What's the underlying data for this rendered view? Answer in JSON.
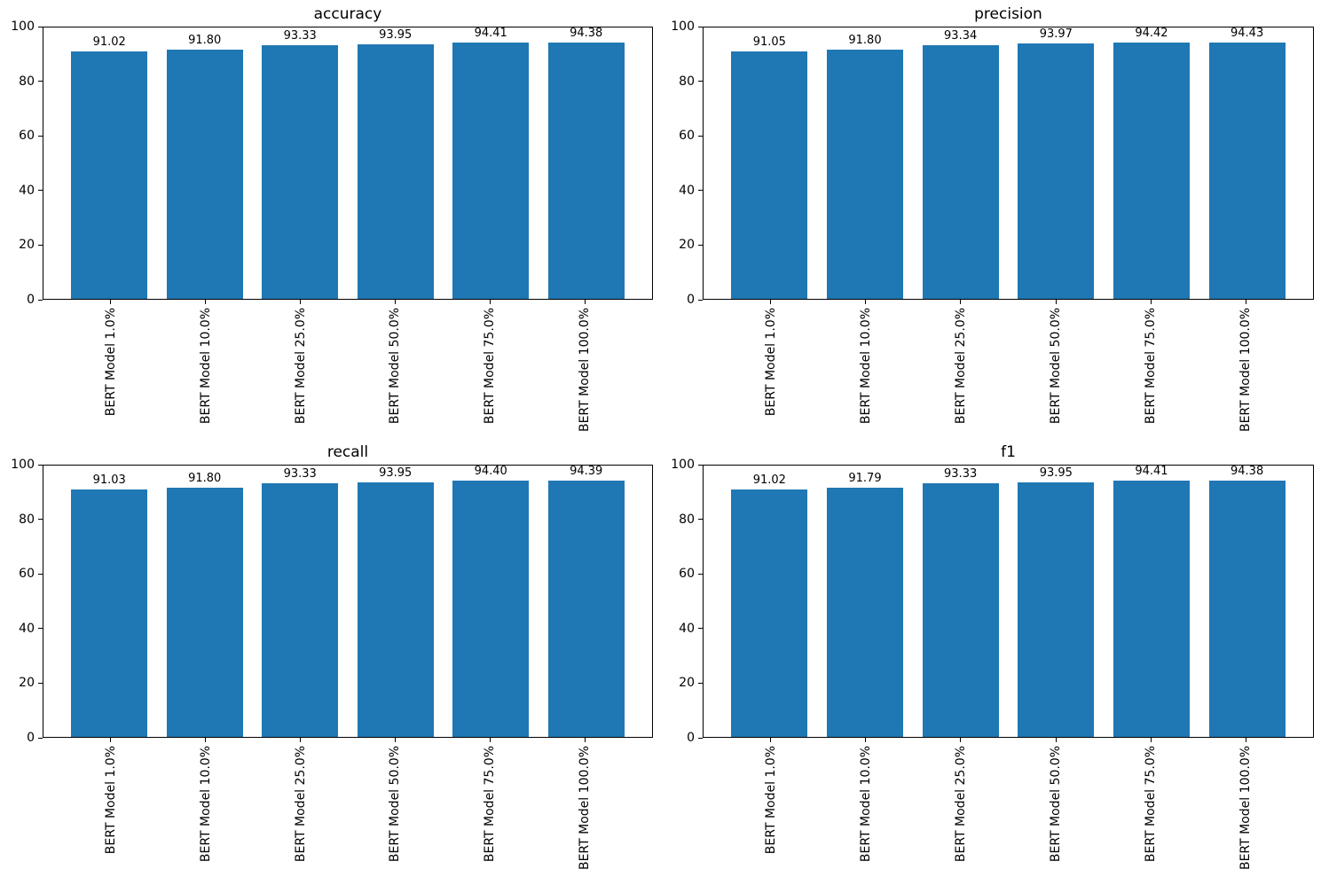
{
  "figure": {
    "background_color": "#ffffff",
    "axis_color": "#000000",
    "text_color": "#000000",
    "bar_color": "#1f77b4"
  },
  "chart_data": [
    {
      "type": "bar",
      "title": "accuracy",
      "categories": [
        "BERT Model 1.0%",
        "BERT Model 10.0%",
        "BERT Model 25.0%",
        "BERT Model 50.0%",
        "BERT Model 75.0%",
        "BERT Model 100.0%"
      ],
      "values": [
        91.02,
        91.8,
        93.33,
        93.95,
        94.41,
        94.38
      ],
      "value_labels": [
        "91.02",
        "91.80",
        "93.33",
        "93.95",
        "94.41",
        "94.38"
      ],
      "xlabel": "",
      "ylabel": "",
      "ylim": [
        0,
        100
      ],
      "yticks": [
        0,
        20,
        40,
        60,
        80,
        100
      ],
      "xtick_rotation": 90,
      "grid": false,
      "legend": false,
      "bar_color": "#1f77b4"
    },
    {
      "type": "bar",
      "title": "precision",
      "categories": [
        "BERT Model 1.0%",
        "BERT Model 10.0%",
        "BERT Model 25.0%",
        "BERT Model 50.0%",
        "BERT Model 75.0%",
        "BERT Model 100.0%"
      ],
      "values": [
        91.05,
        91.8,
        93.34,
        93.97,
        94.42,
        94.43
      ],
      "value_labels": [
        "91.05",
        "91.80",
        "93.34",
        "93.97",
        "94.42",
        "94.43"
      ],
      "xlabel": "",
      "ylabel": "",
      "ylim": [
        0,
        100
      ],
      "yticks": [
        0,
        20,
        40,
        60,
        80,
        100
      ],
      "xtick_rotation": 90,
      "grid": false,
      "legend": false,
      "bar_color": "#1f77b4"
    },
    {
      "type": "bar",
      "title": "recall",
      "categories": [
        "BERT Model 1.0%",
        "BERT Model 10.0%",
        "BERT Model 25.0%",
        "BERT Model 50.0%",
        "BERT Model 75.0%",
        "BERT Model 100.0%"
      ],
      "values": [
        91.03,
        91.8,
        93.33,
        93.95,
        94.4,
        94.39
      ],
      "value_labels": [
        "91.03",
        "91.80",
        "93.33",
        "93.95",
        "94.40",
        "94.39"
      ],
      "xlabel": "",
      "ylabel": "",
      "ylim": [
        0,
        100
      ],
      "yticks": [
        0,
        20,
        40,
        60,
        80,
        100
      ],
      "xtick_rotation": 90,
      "grid": false,
      "legend": false,
      "bar_color": "#1f77b4"
    },
    {
      "type": "bar",
      "title": "f1",
      "categories": [
        "BERT Model 1.0%",
        "BERT Model 10.0%",
        "BERT Model 25.0%",
        "BERT Model 50.0%",
        "BERT Model 75.0%",
        "BERT Model 100.0%"
      ],
      "values": [
        91.02,
        91.79,
        93.33,
        93.95,
        94.41,
        94.38
      ],
      "value_labels": [
        "91.02",
        "91.79",
        "93.33",
        "93.95",
        "94.41",
        "94.38"
      ],
      "xlabel": "",
      "ylabel": "",
      "ylim": [
        0,
        100
      ],
      "yticks": [
        0,
        20,
        40,
        60,
        80,
        100
      ],
      "xtick_rotation": 90,
      "grid": false,
      "legend": false,
      "bar_color": "#1f77b4"
    }
  ]
}
